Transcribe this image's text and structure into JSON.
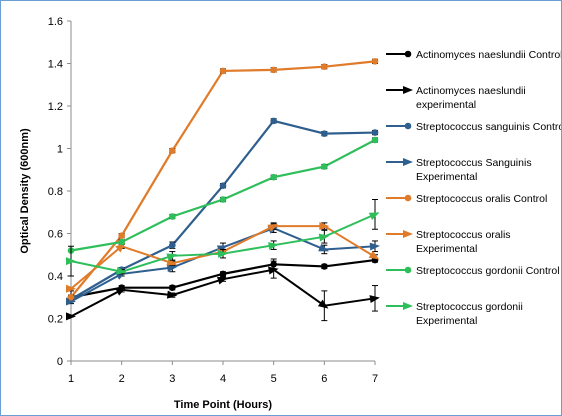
{
  "chart_data": {
    "type": "line",
    "title": "",
    "xlabel": "Time Point (Hours)",
    "ylabel": "Optical Density (600nm)",
    "x": [
      1,
      2,
      3,
      4,
      5,
      6,
      7
    ],
    "xlim": [
      1,
      7
    ],
    "ylim": [
      0,
      1.6
    ],
    "yticks": [
      "0",
      "0.2",
      "0.4",
      "0.6",
      "0.8",
      "1",
      "1.2",
      "1.4",
      "1.6"
    ],
    "xticks": [
      "1",
      "2",
      "3",
      "4",
      "5",
      "6",
      "7"
    ],
    "grid": false,
    "legend_position": "right",
    "series": [
      {
        "name": "Actinomyces naeslundii Control",
        "color": "#000000",
        "marker": "circle",
        "values": [
          0.3,
          0.345,
          0.345,
          0.41,
          0.455,
          0.445,
          0.475
        ],
        "errors": [
          0.03,
          0.01,
          0.01,
          0.01,
          0.025,
          0.01,
          0.01
        ]
      },
      {
        "name": "Actinomyces naeslundii experimental",
        "color": "#000000",
        "marker": "arrow",
        "values": [
          0.21,
          0.335,
          0.31,
          0.385,
          0.43,
          0.26,
          0.295
        ],
        "errors": [
          0.0,
          0.01,
          0.01,
          0.01,
          0.04,
          0.07,
          0.06
        ]
      },
      {
        "name": "Streptococcus sanguinis Control",
        "color": "#2f5f8f",
        "marker": "circle",
        "values": [
          0.29,
          0.43,
          0.545,
          0.825,
          1.13,
          1.07,
          1.075
        ],
        "errors": [
          0.0,
          0.01,
          0.015,
          0.01,
          0.01,
          0.01,
          0.01
        ]
      },
      {
        "name": "Streptococcus Sanguinis Experimental",
        "color": "#2f5f8f",
        "marker": "arrow",
        "values": [
          0.28,
          0.41,
          0.44,
          0.535,
          0.625,
          0.525,
          0.54
        ],
        "errors": [
          0.0,
          0.01,
          0.02,
          0.02,
          0.02,
          0.02,
          0.025
        ]
      },
      {
        "name": "Streptococcus oralis Control",
        "color": "#e07b2a",
        "marker": "circle",
        "values": [
          0.3,
          0.59,
          0.99,
          1.365,
          1.37,
          1.385,
          1.41
        ],
        "errors": [
          0.01,
          0.01,
          0.01,
          0.01,
          0.01,
          0.01,
          0.01
        ]
      },
      {
        "name": "Streptococcus oralis Experimental",
        "color": "#e07b2a",
        "marker": "arrow",
        "values": [
          0.34,
          0.54,
          0.46,
          0.515,
          0.635,
          0.635,
          0.49
        ],
        "errors": [
          0.0,
          0.01,
          0.01,
          0.01,
          0.015,
          0.015,
          0.01
        ]
      },
      {
        "name": "Streptococcus gordonii Control",
        "color": "#2ebf5b",
        "marker": "circle",
        "values": [
          0.52,
          0.56,
          0.68,
          0.76,
          0.865,
          0.915,
          1.04
        ],
        "errors": [
          0.0,
          0.01,
          0.01,
          0.01,
          0.01,
          0.01,
          0.01
        ]
      },
      {
        "name": "Streptococcus gordonii Experimental",
        "color": "#2ebf5b",
        "marker": "arrow",
        "values": [
          0.47,
          0.42,
          0.495,
          0.505,
          0.545,
          0.585,
          0.69
        ],
        "errors": [
          0.07,
          0.01,
          0.02,
          0.02,
          0.02,
          0.03,
          0.07
        ]
      }
    ],
    "legend": [
      {
        "line1": "Actinomyces naeslundii Control",
        "line2": ""
      },
      {
        "line1": "Actinomyces naeslundii",
        "line2": "experimental"
      },
      {
        "line1": "Streptococcus sanguinis Control",
        "line2": ""
      },
      {
        "line1": "Streptococcus Sanguinis",
        "line2": "Experimental"
      },
      {
        "line1": "Streptococcus oralis Control",
        "line2": ""
      },
      {
        "line1": "Streptococcus oralis",
        "line2": "Experimental"
      },
      {
        "line1": "Streptococcus gordonii Control",
        "line2": ""
      },
      {
        "line1": "Streptococcus gordonii",
        "line2": "Experimental"
      }
    ]
  }
}
